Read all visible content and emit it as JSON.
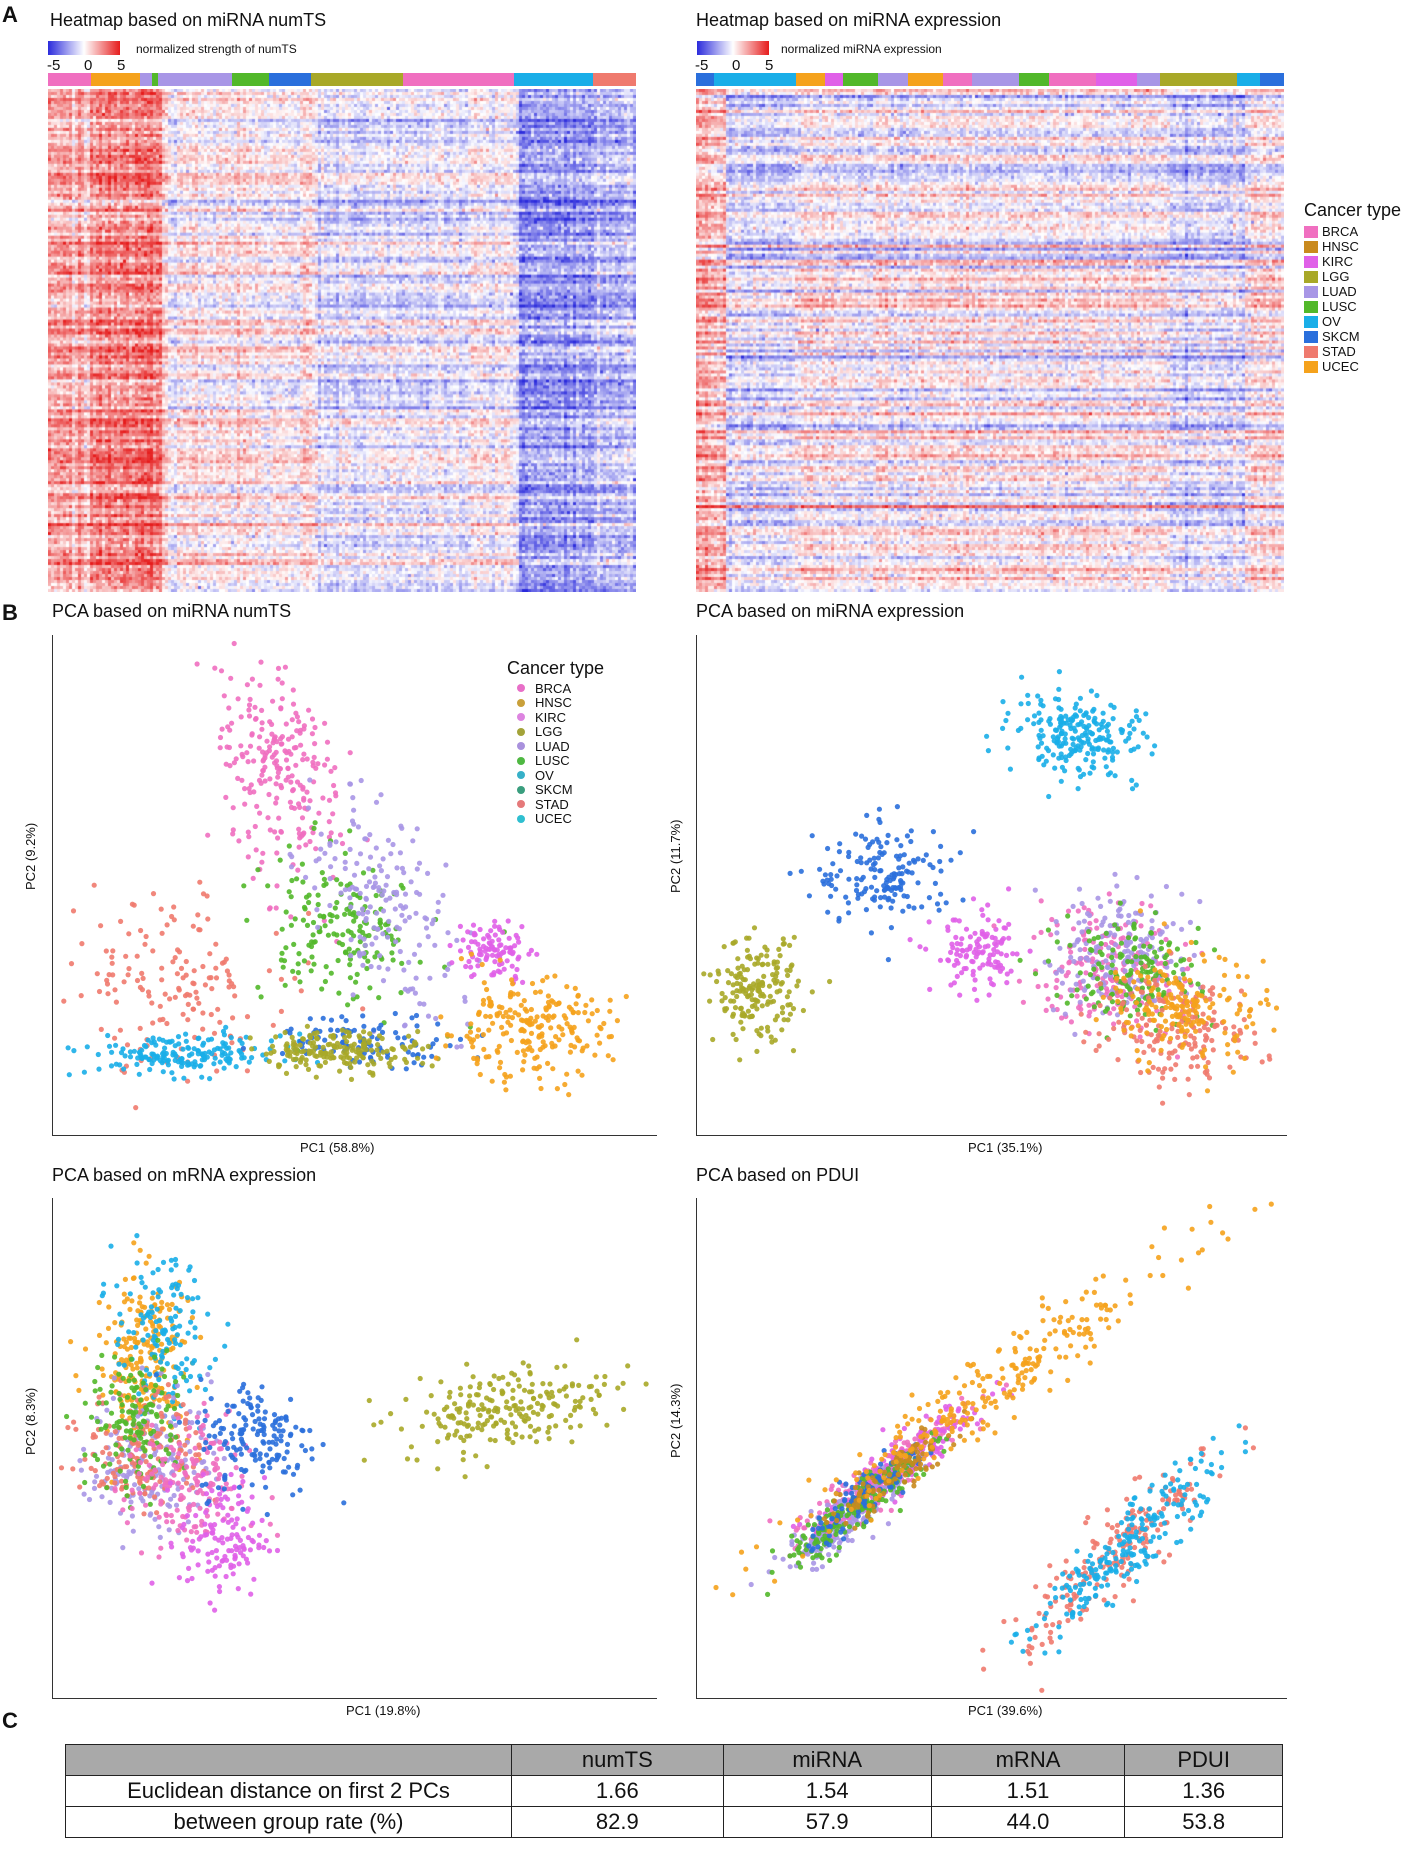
{
  "panels": {
    "A": "A",
    "B": "B",
    "C": "C"
  },
  "colors": {
    "BRCA": "#f06fc0",
    "HNSC": "#c98a1e",
    "KIRC": "#e060e8",
    "LGG": "#a8a828",
    "LUAD": "#a896e6",
    "LUSC": "#52b82a",
    "OV": "#1aaee8",
    "SKCM": "#2a6fdc",
    "STAD": "#ef7a6e",
    "UCEC": "#f5a21c",
    "heat_low": "#2b2bdc",
    "heat_mid": "#ffffff",
    "heat_high": "#e61c1c"
  },
  "heatmaps": [
    {
      "title": "Heatmap based on miRNA numTS",
      "scale_label": "normalized strength of numTS",
      "ticks": [
        "-5",
        "0",
        "5"
      ],
      "bands": [
        "BRCA",
        "UCEC",
        "LUAD",
        "LUSC",
        "LUAD",
        "LUSC",
        "SKCM",
        "LGG",
        "BRCA",
        "OV",
        "STAD"
      ],
      "band_widths": [
        7,
        8,
        2,
        1,
        12,
        6,
        7,
        15,
        18,
        13,
        7
      ]
    },
    {
      "title": "Heatmap based on miRNA expression",
      "scale_label": "normalized miRNA expression",
      "ticks": [
        "-5",
        "0",
        "5"
      ],
      "bands": [
        "SKCM",
        "OV",
        "UCEC",
        "KIRC",
        "LUSC",
        "LUAD",
        "UCEC",
        "BRCA",
        "LUAD",
        "LUSC",
        "BRCA",
        "KIRC",
        "LUAD",
        "LGG",
        "OV",
        "SKCM"
      ],
      "band_widths": [
        3,
        14,
        5,
        3,
        6,
        5,
        6,
        5,
        8,
        5,
        8,
        7,
        4,
        13,
        4,
        4
      ]
    }
  ],
  "heatmap_legend": {
    "title": "Cancer type",
    "items": [
      "BRCA",
      "HNSC",
      "KIRC",
      "LGG",
      "LUAD",
      "LUSC",
      "OV",
      "SKCM",
      "STAD",
      "UCEC"
    ]
  },
  "pca_legend": {
    "title": "Cancer type",
    "items": [
      "BRCA",
      "HNSC",
      "KIRC",
      "LGG",
      "LUAD",
      "LUSC",
      "OV",
      "SKCM",
      "STAD",
      "UCEC"
    ],
    "dot_colors": [
      "#e86fc8",
      "#c9a03a",
      "#dd84e0",
      "#a3a339",
      "#a991dd",
      "#4fb842",
      "#37b0c8",
      "#3a9e7e",
      "#e5797a",
      "#2fbfd0"
    ]
  },
  "chart_data": [
    {
      "type": "scatter",
      "title": "PCA based on miRNA numTS",
      "xlabel": "PC1 (58.8%)",
      "ylabel": "PC2 (9.2%)",
      "xlim": [
        0,
        100
      ],
      "ylim": [
        0,
        100
      ],
      "series": [
        {
          "name": "BRCA",
          "center": [
            38,
            72
          ],
          "spread": [
            5,
            11
          ],
          "n": 240,
          "rot": 10
        },
        {
          "name": "STAD",
          "center": [
            19,
            30
          ],
          "spread": [
            9,
            9
          ],
          "n": 160,
          "rot": 20
        },
        {
          "name": "OV",
          "center": [
            22,
            16
          ],
          "spread": [
            8,
            2
          ],
          "n": 180,
          "rot": 0
        },
        {
          "name": "LUSC",
          "center": [
            48,
            41
          ],
          "spread": [
            6,
            8
          ],
          "n": 180,
          "rot": 15
        },
        {
          "name": "LUAD",
          "center": [
            55,
            44
          ],
          "spread": [
            5,
            12
          ],
          "n": 180,
          "rot": 20
        },
        {
          "name": "SKCM",
          "center": [
            52,
            19
          ],
          "spread": [
            8,
            2.5
          ],
          "n": 100,
          "rot": 0
        },
        {
          "name": "LGG",
          "center": [
            48,
            17
          ],
          "spread": [
            7,
            2
          ],
          "n": 180,
          "rot": 0
        },
        {
          "name": "KIRC",
          "center": [
            73,
            37
          ],
          "spread": [
            3,
            3
          ],
          "n": 100,
          "rot": 0
        },
        {
          "name": "UCEC",
          "center": [
            78,
            21
          ],
          "spread": [
            7,
            5
          ],
          "n": 220,
          "rot": 0
        }
      ]
    },
    {
      "type": "scatter",
      "title": "PCA based on miRNA expression",
      "xlabel": "PC1 (35.1%)",
      "ylabel": "PC2 (11.7%)",
      "xlim": [
        0,
        100
      ],
      "ylim": [
        0,
        100
      ],
      "series": [
        {
          "name": "OV",
          "center": [
            65,
            80
          ],
          "spread": [
            6,
            4
          ],
          "n": 220,
          "rot": -15
        },
        {
          "name": "SKCM",
          "center": [
            32,
            52
          ],
          "spread": [
            6,
            5
          ],
          "n": 160,
          "rot": 0
        },
        {
          "name": "LGG",
          "center": [
            10,
            29
          ],
          "spread": [
            3.5,
            5
          ],
          "n": 180,
          "rot": 0
        },
        {
          "name": "KIRC",
          "center": [
            48,
            36
          ],
          "spread": [
            4,
            4
          ],
          "n": 120,
          "rot": 0
        },
        {
          "name": "BRCA",
          "center": [
            70,
            33
          ],
          "spread": [
            7,
            6
          ],
          "n": 200,
          "rot": -20
        },
        {
          "name": "LUAD",
          "center": [
            72,
            36
          ],
          "spread": [
            6,
            6
          ],
          "n": 180,
          "rot": -20
        },
        {
          "name": "LUSC",
          "center": [
            74,
            33
          ],
          "spread": [
            6,
            5
          ],
          "n": 160,
          "rot": -20
        },
        {
          "name": "STAD",
          "center": [
            80,
            22
          ],
          "spread": [
            7,
            6
          ],
          "n": 180,
          "rot": -20
        },
        {
          "name": "UCEC",
          "center": [
            83,
            25
          ],
          "spread": [
            6,
            5
          ],
          "n": 180,
          "rot": -20
        }
      ]
    },
    {
      "type": "scatter",
      "title": "PCA based on mRNA expression",
      "xlabel": "PC1 (19.8%)",
      "ylabel": "PC2 (8.3%)",
      "xlim": [
        0,
        100
      ],
      "ylim": [
        0,
        100
      ],
      "series": [
        {
          "name": "UCEC",
          "center": [
            15,
            68
          ],
          "spread": [
            4,
            9
          ],
          "n": 220,
          "rot": 0
        },
        {
          "name": "OV",
          "center": [
            18,
            72
          ],
          "spread": [
            4,
            8
          ],
          "n": 140,
          "rot": 0
        },
        {
          "name": "LUAD",
          "center": [
            16,
            48
          ],
          "spread": [
            5,
            7
          ],
          "n": 180,
          "rot": 0
        },
        {
          "name": "STAD",
          "center": [
            15,
            50
          ],
          "spread": [
            5,
            6
          ],
          "n": 160,
          "rot": 0
        },
        {
          "name": "LUSC",
          "center": [
            14,
            55
          ],
          "spread": [
            4,
            7
          ],
          "n": 140,
          "rot": 0
        },
        {
          "name": "BRCA",
          "center": [
            22,
            42
          ],
          "spread": [
            5,
            7
          ],
          "n": 160,
          "rot": 0
        },
        {
          "name": "KIRC",
          "center": [
            28,
            32
          ],
          "spread": [
            3.5,
            6
          ],
          "n": 130,
          "rot": 0
        },
        {
          "name": "SKCM",
          "center": [
            34,
            52
          ],
          "spread": [
            5,
            6
          ],
          "n": 160,
          "rot": 0
        },
        {
          "name": "LGG",
          "center": [
            75,
            58
          ],
          "spread": [
            9,
            4
          ],
          "n": 220,
          "rot": 12
        }
      ]
    },
    {
      "type": "scatter",
      "title": "PCA based on PDUI",
      "xlabel": "PC1 (39.6%)",
      "ylabel": "PC2 (14.3%)",
      "xlim": [
        0,
        100
      ],
      "ylim": [
        0,
        100
      ],
      "series": [
        {
          "name": "BRCA",
          "center": [
            30,
            43
          ],
          "spread": [
            9,
            2
          ],
          "n": 200,
          "rot": 45
        },
        {
          "name": "KIRC",
          "center": [
            34,
            46
          ],
          "spread": [
            10,
            2
          ],
          "n": 160,
          "rot": 45
        },
        {
          "name": "LUAD",
          "center": [
            25,
            36
          ],
          "spread": [
            7,
            2
          ],
          "n": 160,
          "rot": 45
        },
        {
          "name": "LUSC",
          "center": [
            27,
            38
          ],
          "spread": [
            8,
            1.8
          ],
          "n": 200,
          "rot": 45
        },
        {
          "name": "SKCM",
          "center": [
            30,
            42
          ],
          "spread": [
            8,
            1.5
          ],
          "n": 100,
          "rot": 45
        },
        {
          "name": "HNSC",
          "center": [
            33,
            44
          ],
          "spread": [
            8,
            1.8
          ],
          "n": 100,
          "rot": 45
        },
        {
          "name": "UCEC",
          "center": [
            50,
            62
          ],
          "spread": [
            22,
            3
          ],
          "n": 260,
          "rot": 40
        },
        {
          "name": "STAD",
          "center": [
            71,
            29
          ],
          "spread": [
            13,
            3
          ],
          "n": 200,
          "rot": 50
        },
        {
          "name": "OV",
          "center": [
            73,
            30
          ],
          "spread": [
            12,
            2.5
          ],
          "n": 220,
          "rot": 50
        }
      ]
    },
    {
      "type": "table",
      "columns": [
        "",
        "numTS",
        "miRNA",
        "mRNA",
        "PDUI"
      ],
      "rows": [
        [
          "Euclidean distance on first 2 PCs",
          "1.66",
          "1.54",
          "1.51",
          "1.36"
        ],
        [
          "between group rate (%)",
          "82.9",
          "57.9",
          "44.0",
          "53.8"
        ]
      ]
    }
  ]
}
